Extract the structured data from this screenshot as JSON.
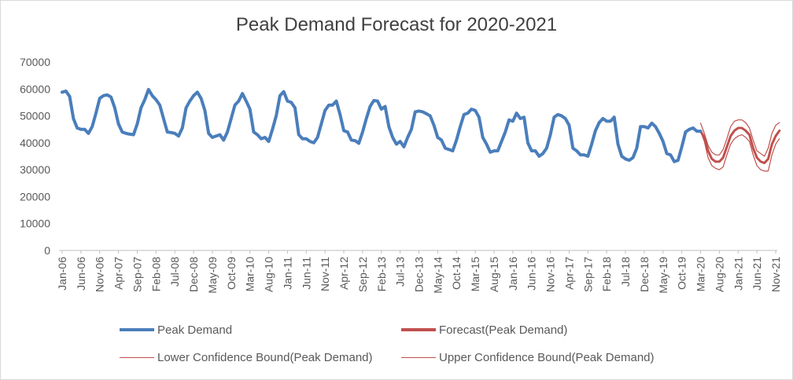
{
  "chart_data": {
    "type": "line",
    "title": "Peak Demand Forecast for 2020-2021",
    "xlabel": "",
    "ylabel": "",
    "ylim": [
      0,
      70000
    ],
    "yticks": [
      "0",
      "10000",
      "20000",
      "30000",
      "40000",
      "50000",
      "60000",
      "70000"
    ],
    "xtick_labels": [
      "Jan-06",
      "Jun-06",
      "Nov-06",
      "Apr-07",
      "Sep-07",
      "Feb-08",
      "Jul-08",
      "Dec-08",
      "May-09",
      "Oct-09",
      "Mar-10",
      "Aug-10",
      "Jan-11",
      "Jun-11",
      "Nov-11",
      "Apr-12",
      "Sep-12",
      "Feb-13",
      "Jul-13",
      "Dec-13",
      "May-14",
      "Oct-14",
      "Mar-15",
      "Aug-15",
      "Jan-16",
      "Jun-16",
      "Nov-16",
      "Apr-17",
      "Sep-17",
      "Feb-18",
      "Jul-18",
      "Dec-18",
      "May-19",
      "Oct-19",
      "Mar-20",
      "Aug-20",
      "Jan-21",
      "Jun-21",
      "Nov-21"
    ],
    "x_start": "Jan-06",
    "x_step": "1 month",
    "grid": false,
    "legend_position": "bottom",
    "colors": {
      "peak": "#4a7ebb",
      "forecast": "#c0504d",
      "bounds": "#c0504d",
      "axis": "#bfbfbf",
      "text": "#595959"
    },
    "series": [
      {
        "name": "Peak Demand",
        "start_index": 0,
        "values": [
          58800,
          59200,
          57200,
          49000,
          45500,
          45000,
          45000,
          43500,
          46000,
          51000,
          56500,
          57500,
          57800,
          57000,
          53000,
          47000,
          44000,
          43500,
          43200,
          43000,
          47000,
          53000,
          56000,
          59800,
          57500,
          56000,
          54000,
          49000,
          44000,
          43800,
          43500,
          42500,
          45500,
          53000,
          55500,
          57500,
          58800,
          56500,
          52000,
          43500,
          42000,
          42500,
          43000,
          41000,
          44000,
          49000,
          54000,
          55500,
          58300,
          55500,
          52500,
          44000,
          43000,
          41500,
          42000,
          40500,
          45000,
          50000,
          57500,
          59000,
          55500,
          55000,
          53000,
          43000,
          41500,
          41500,
          40500,
          40000,
          42000,
          47000,
          52000,
          54000,
          54000,
          55500,
          50500,
          44500,
          44000,
          41000,
          40800,
          39800,
          44000,
          49000,
          53500,
          55700,
          55500,
          52500,
          53500,
          46000,
          42000,
          39500,
          40500,
          38500,
          42000,
          45000,
          51500,
          51800,
          51500,
          50800,
          50000,
          46500,
          42000,
          41000,
          38000,
          37500,
          37000,
          41000,
          46000,
          50500,
          51000,
          52500,
          52000,
          49500,
          42000,
          39500,
          36500,
          37000,
          37000,
          40500,
          44000,
          48500,
          48000,
          51000,
          49000,
          49500,
          40000,
          37000,
          37000,
          35000,
          36000,
          38000,
          43000,
          49500,
          50500,
          50000,
          49000,
          46500,
          38000,
          37000,
          35500,
          35500,
          35000,
          39500,
          44500,
          47500,
          49000,
          48000,
          48000,
          49500,
          39500,
          35000,
          34000,
          33500,
          34500,
          38000,
          46000,
          46000,
          45500,
          47300,
          46000,
          43500,
          40500,
          36000,
          35500,
          33000,
          33500,
          38500,
          44000,
          45000,
          45500,
          44300,
          44300
        ]
      },
      {
        "name": "Forecast(Peak Demand)",
        "start_index": 170,
        "values": [
          44300,
          42000,
          37000,
          34000,
          33000,
          33000,
          34500,
          38500,
          42500,
          44500,
          45500,
          45500,
          44500,
          43000,
          38000,
          34500,
          33000,
          32500,
          34000,
          39500,
          42500,
          44500
        ]
      },
      {
        "name": "Lower Confidence Bound(Peak Demand)",
        "start_index": 170,
        "values": [
          44300,
          40500,
          34500,
          31500,
          30500,
          30000,
          31000,
          35500,
          39500,
          41500,
          42500,
          43000,
          42000,
          40500,
          35500,
          31500,
          30000,
          29500,
          29500,
          35500,
          39500,
          41500
        ]
      },
      {
        "name": "Upper Confidence Bound(Peak Demand)",
        "start_index": 170,
        "values": [
          47300,
          43500,
          39000,
          36500,
          35500,
          35500,
          37500,
          41500,
          46000,
          48000,
          48500,
          48500,
          47500,
          45500,
          41000,
          37000,
          36000,
          35000,
          38000,
          43500,
          46500,
          47500
        ]
      }
    ]
  },
  "legend": {
    "items": [
      {
        "label": "Peak Demand"
      },
      {
        "label": "Forecast(Peak Demand)"
      },
      {
        "label": "Lower Confidence Bound(Peak Demand)"
      },
      {
        "label": "Upper Confidence Bound(Peak Demand)"
      }
    ]
  }
}
